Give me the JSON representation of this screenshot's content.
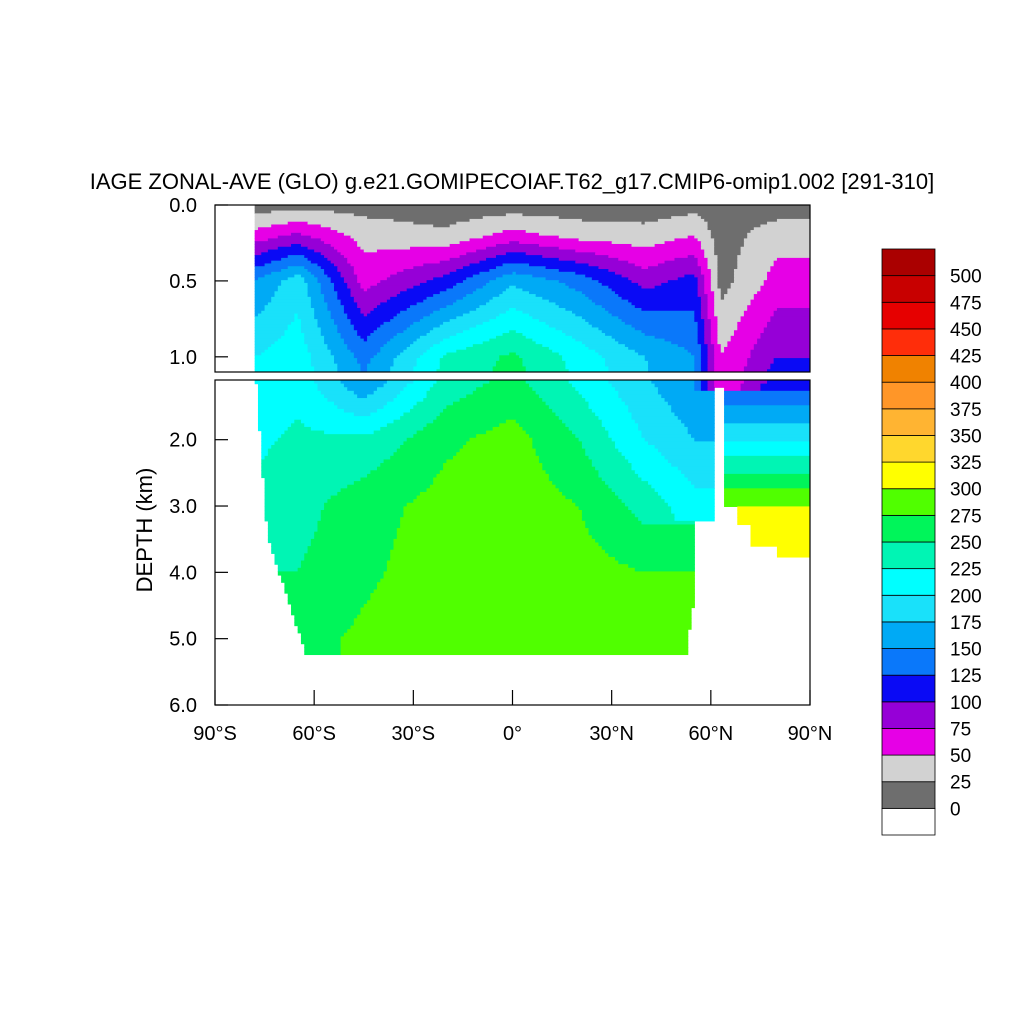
{
  "chart_data": {
    "type": "heatmap",
    "title": "IAGE ZONAL-AVE (GLO) g.e21.GOMIPECOIAF.T62_g17.CMIP6-omip1.002 [291-310]",
    "ylabel": "DEPTH (km)",
    "xlabel": "",
    "x_ticks": [
      "90°S",
      "60°S",
      "30°S",
      "0°",
      "30°N",
      "60°N",
      "90°N"
    ],
    "x_tick_values": [
      -90,
      -60,
      -30,
      0,
      30,
      60,
      90
    ],
    "upper_panel": {
      "ylim": [
        0,
        1.1
      ],
      "ticks": [
        "0.0",
        "0.5",
        "1.0"
      ],
      "tick_values": [
        0,
        0.5,
        1.0
      ]
    },
    "lower_panel": {
      "ylim": [
        1.1,
        6.0
      ],
      "ticks": [
        "2.0",
        "3.0",
        "4.0",
        "5.0",
        "6.0"
      ],
      "tick_values": [
        2,
        3,
        4,
        5,
        6
      ]
    },
    "legend_placement": "right",
    "levels": [
      "0",
      "25",
      "50",
      "75",
      "100",
      "125",
      "150",
      "175",
      "200",
      "225",
      "250",
      "275",
      "300",
      "325",
      "350",
      "375",
      "400",
      "425",
      "450",
      "475",
      "500"
    ],
    "colors": [
      "#ffffff",
      "#6e6e6e",
      "#d2d2d2",
      "#e600e6",
      "#9600d7",
      "#0a0af5",
      "#0a78fa",
      "#00aaf5",
      "#19e1fa",
      "#00ffff",
      "#00f5b4",
      "#00f55a",
      "#50ff00",
      "#ffff00",
      "#ffd72d",
      "#ffb432",
      "#ff9628",
      "#f08200",
      "#ff2d0a",
      "#e60000",
      "#c80000",
      "#aa0000"
    ],
    "profiles": [
      {
        "lat": -78,
        "values_by_depth": {
          "0.0": 10,
          "0.2": 60,
          "0.5": 150,
          "1.0": 200,
          "2.0": 220,
          "3.0": 230,
          "4.0": null
        }
      },
      {
        "lat": -65,
        "values_by_depth": {
          "0.0": 15,
          "0.2": 80,
          "0.5": 190,
          "1.0": 215,
          "2.0": 230,
          "3.0": 240,
          "4.0": 250,
          "5.0": 265
        }
      },
      {
        "lat": -45,
        "values_by_depth": {
          "0.0": 15,
          "0.2": 40,
          "0.5": 65,
          "1.0": 140,
          "2.0": 230,
          "3.0": 265,
          "4.0": 270,
          "5.0": 280
        }
      },
      {
        "lat": -20,
        "values_by_depth": {
          "0.0": 10,
          "0.2": 30,
          "0.5": 110,
          "1.0": 230,
          "2.0": 270,
          "3.0": 285,
          "4.0": 290,
          "5.0": 290
        }
      },
      {
        "lat": 0,
        "values_by_depth": {
          "0.0": 10,
          "0.2": 60,
          "0.5": 170,
          "1.0": 255,
          "2.0": 285,
          "3.0": 290,
          "4.0": 290,
          "5.0": 280
        }
      },
      {
        "lat": 20,
        "values_by_depth": {
          "0.0": 10,
          "0.2": 40,
          "0.5": 140,
          "1.0": 215,
          "2.0": 250,
          "3.0": 275,
          "4.0": 285,
          "5.0": 290
        }
      },
      {
        "lat": 40,
        "values_by_depth": {
          "0.0": 10,
          "0.2": 35,
          "0.5": 90,
          "1.0": 175,
          "2.0": 200,
          "3.0": 240,
          "4.0": 275,
          "5.0": 285
        }
      },
      {
        "lat": 55,
        "values_by_depth": {
          "0.0": 15,
          "0.2": 50,
          "0.5": 110,
          "1.0": 150,
          "2.0": 175,
          "3.0": 210
        }
      },
      {
        "lat": 63,
        "values_by_depth": {
          "0.0": 10,
          "0.5": 15,
          "1.0": 50
        }
      },
      {
        "lat": 80,
        "values_by_depth": {
          "0.0": 10,
          "0.2": 40,
          "0.5": 60,
          "1.0": 100,
          "2.0": 200,
          "3.0": 300,
          "3.5": 310
        }
      }
    ]
  }
}
